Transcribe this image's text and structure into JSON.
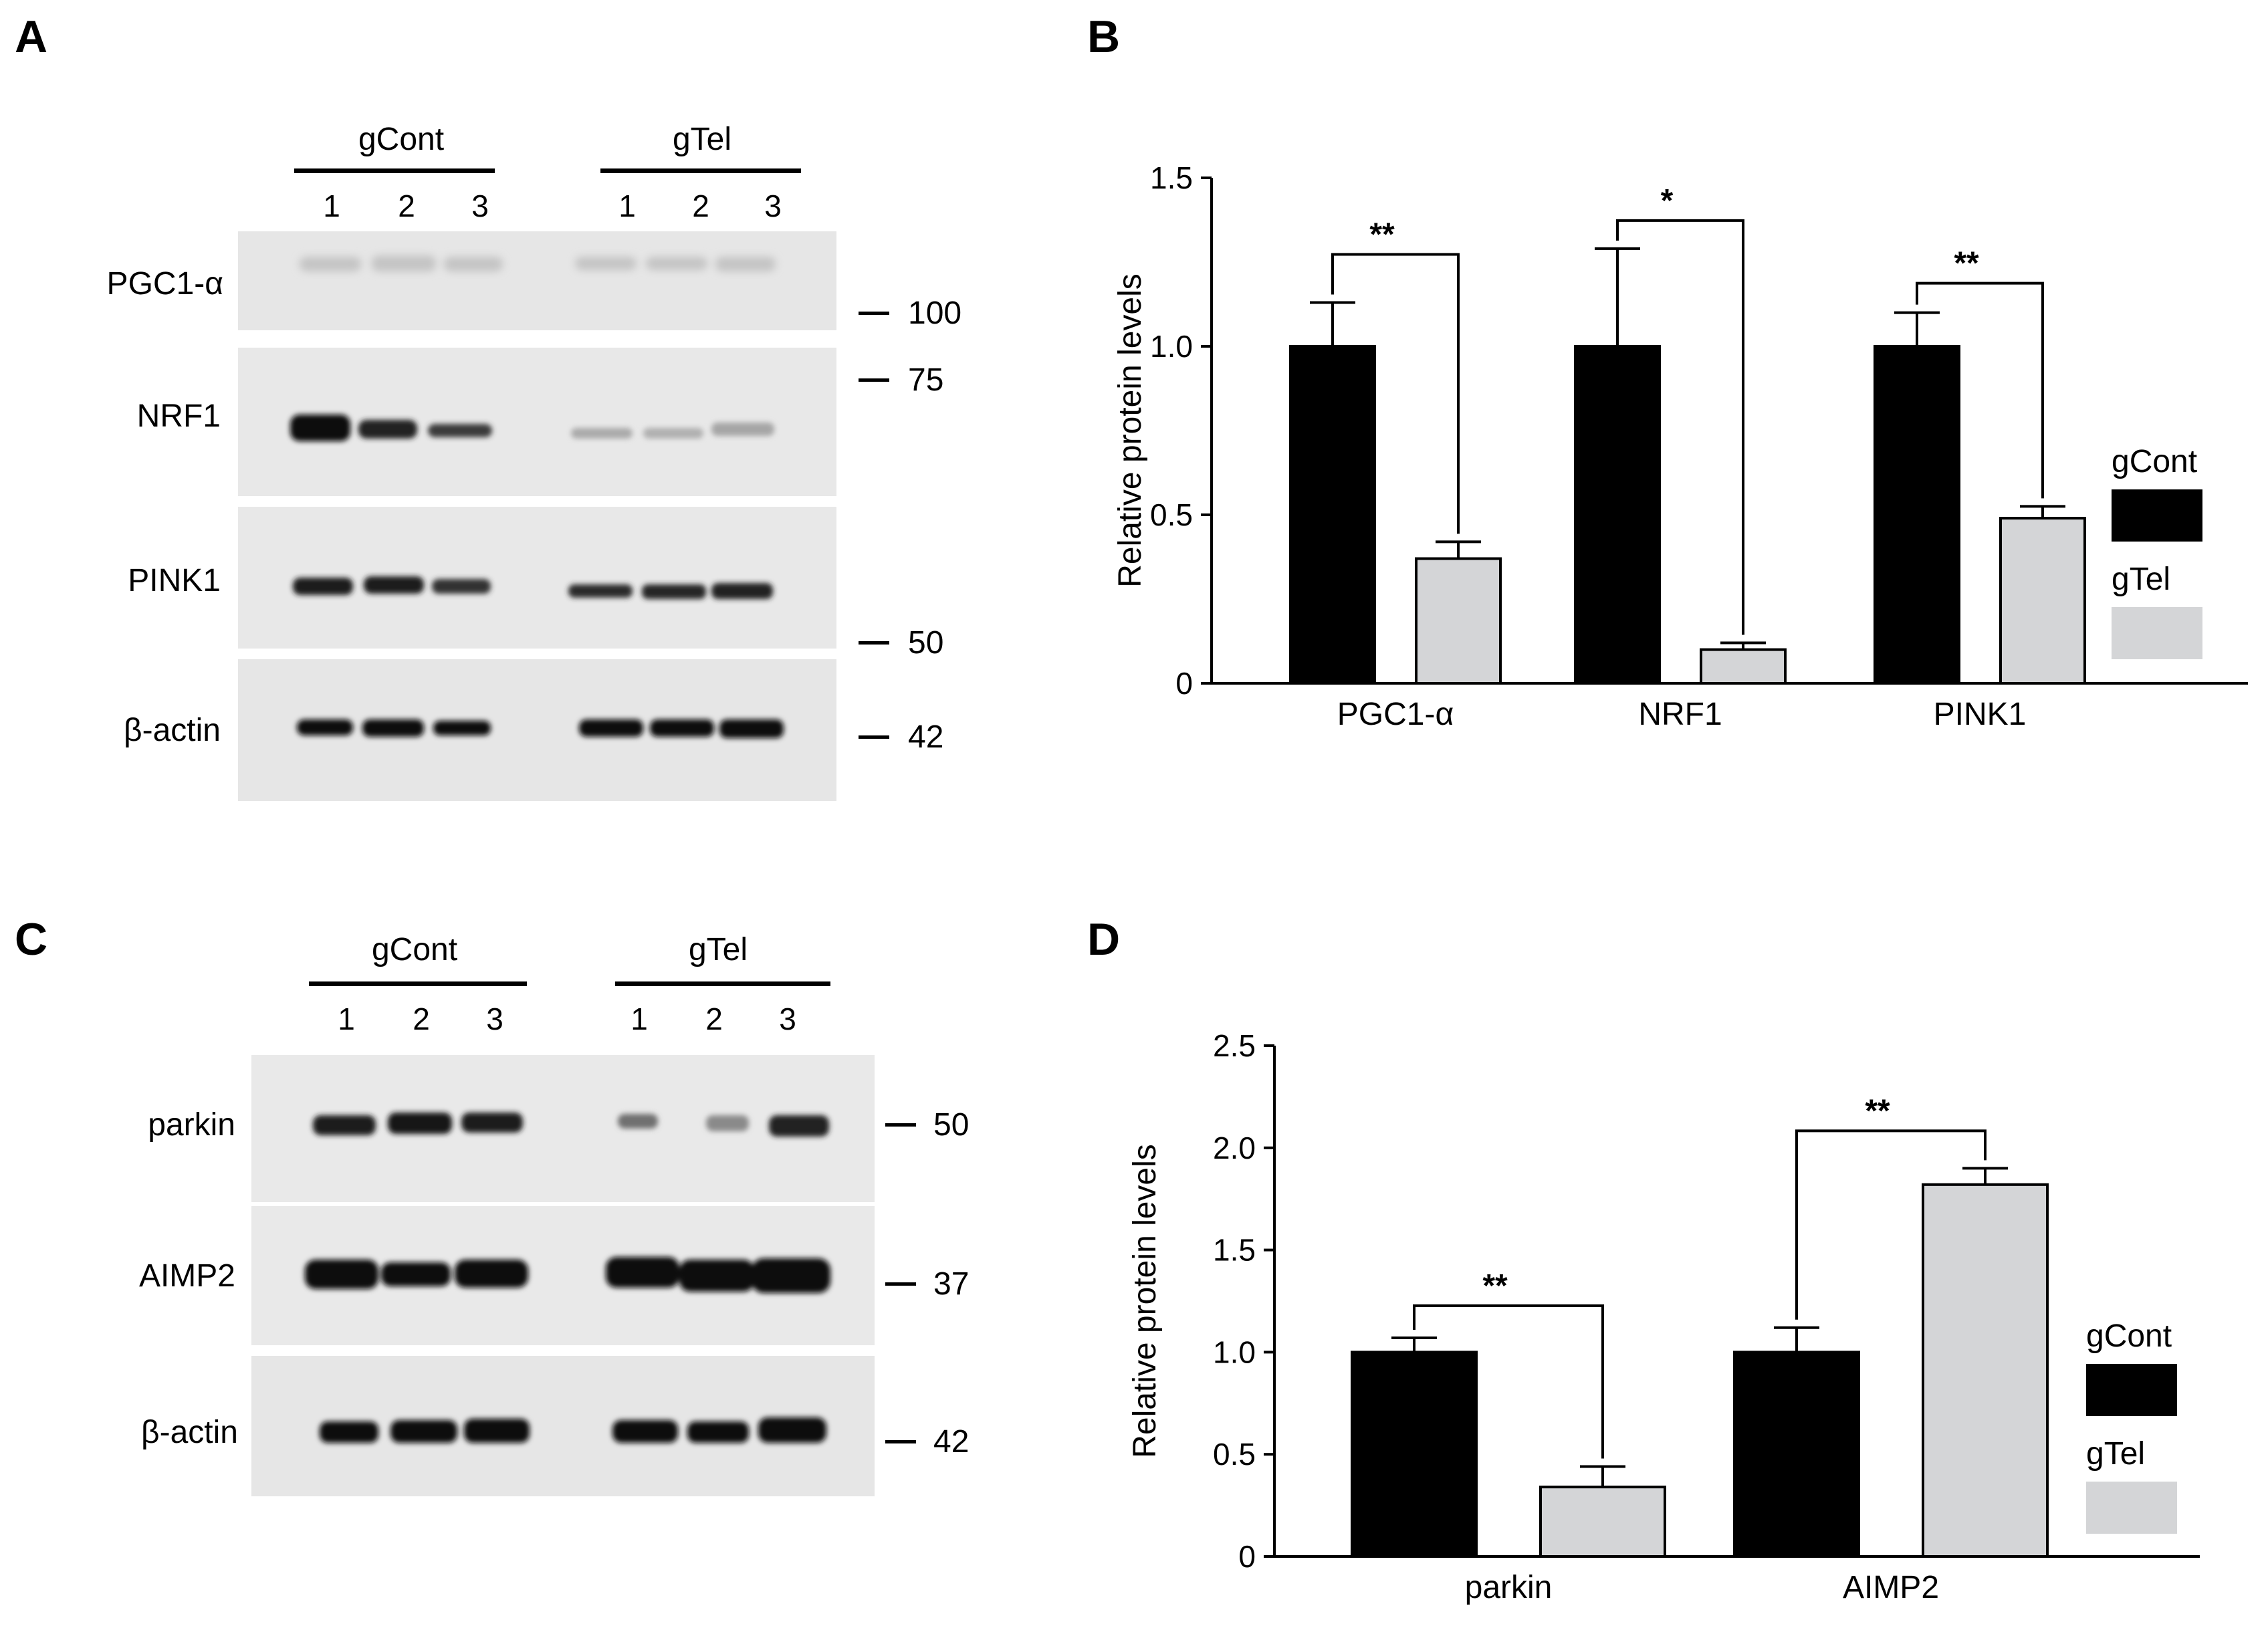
{
  "panels": {
    "A": {
      "label": "A",
      "groups": [
        "gCont",
        "gTel"
      ],
      "lanes": [
        "1",
        "2",
        "3"
      ],
      "rows": [
        {
          "name": "PGC1-α"
        },
        {
          "name": "NRF1"
        },
        {
          "name": "PINK1"
        },
        {
          "name": "β-actin"
        }
      ],
      "markers": [
        "100",
        "75",
        "50",
        "42"
      ]
    },
    "B": {
      "label": "B",
      "significance": [
        "**",
        "*",
        "**"
      ]
    },
    "C": {
      "label": "C",
      "groups": [
        "gCont",
        "gTel"
      ],
      "lanes": [
        "1",
        "2",
        "3"
      ],
      "rows": [
        {
          "name": "parkin"
        },
        {
          "name": "AIMP2"
        },
        {
          "name": "β-actin"
        }
      ],
      "markers": [
        "50",
        "37",
        "42"
      ]
    },
    "D": {
      "label": "D",
      "significance": [
        "**",
        "**"
      ]
    }
  },
  "colors": {
    "gCont": "#000000",
    "gTel": "#d4d5d7",
    "blot_bg": "#e6e6e6"
  },
  "chart_data": [
    {
      "type": "bar",
      "panel": "B",
      "categories": [
        "PGC1-α",
        "NRF1",
        "PINK1"
      ],
      "series": [
        {
          "name": "gCont",
          "values": [
            1.0,
            1.0,
            1.0
          ],
          "errors": [
            0.13,
            0.29,
            0.1
          ]
        },
        {
          "name": "gTel",
          "values": [
            0.37,
            0.1,
            0.49
          ],
          "errors": [
            0.05,
            0.02,
            0.035
          ]
        }
      ],
      "ylabel": "Relative protein levels",
      "ylim": [
        0,
        1.5
      ],
      "yticks": [
        "0",
        "0.5",
        "1.0",
        "1.5"
      ],
      "ytick_values": [
        0,
        0.5,
        1.0,
        1.5
      ],
      "significance": [
        "**",
        "*",
        "**"
      ],
      "legend": "right"
    },
    {
      "type": "bar",
      "panel": "D",
      "categories": [
        "parkin",
        "AIMP2"
      ],
      "series": [
        {
          "name": "gCont",
          "values": [
            1.0,
            1.0
          ],
          "errors": [
            0.07,
            0.12
          ]
        },
        {
          "name": "gTel",
          "values": [
            0.34,
            1.82
          ],
          "errors": [
            0.1,
            0.08
          ]
        }
      ],
      "ylabel": "Relative protein levels",
      "ylim": [
        0,
        2.5
      ],
      "yticks": [
        "0",
        "0.5",
        "1.0",
        "1.5",
        "2.0",
        "2.5"
      ],
      "ytick_values": [
        0,
        0.5,
        1.0,
        1.5,
        2.0,
        2.5
      ],
      "significance": [
        "**",
        "**"
      ],
      "legend": "right"
    }
  ]
}
